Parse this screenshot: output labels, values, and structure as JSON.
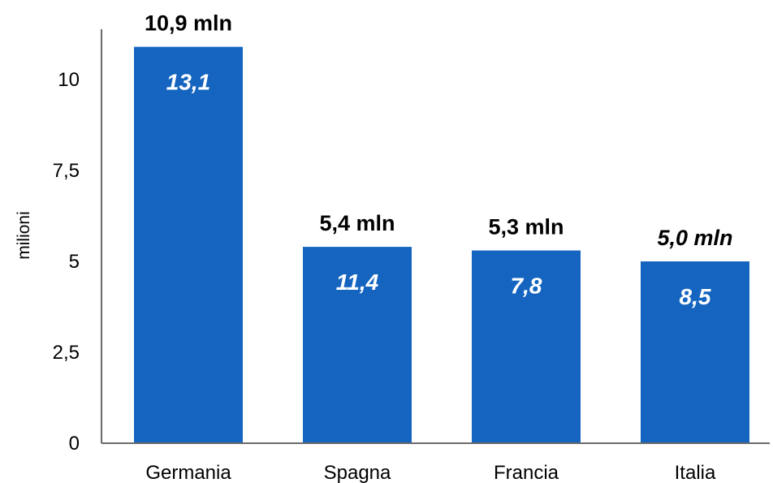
{
  "chart_data": {
    "type": "bar",
    "categories": [
      "Germania",
      "Spagna",
      "Francia",
      "Italia"
    ],
    "values": [
      10.9,
      5.4,
      5.3,
      5.0
    ],
    "top_labels": [
      "10,9 mln",
      "5,4 mln",
      "5,3 mln",
      "5,0 mln"
    ],
    "top_label_italic": [
      false,
      false,
      false,
      true
    ],
    "inner_labels": [
      "13,1",
      "11,4",
      "7,8",
      "8,5"
    ],
    "ylabel": "milioni",
    "ylim": [
      0,
      11
    ],
    "yticks": [
      0,
      2.5,
      5,
      7.5,
      10
    ],
    "ytick_labels": [
      "0",
      "2,5",
      "5",
      "7,5",
      "10"
    ],
    "grid": false,
    "colors": {
      "bar": "#1565c0",
      "axis": "#6b6b6b",
      "text": "#000000",
      "inner_text": "#ffffff"
    }
  }
}
